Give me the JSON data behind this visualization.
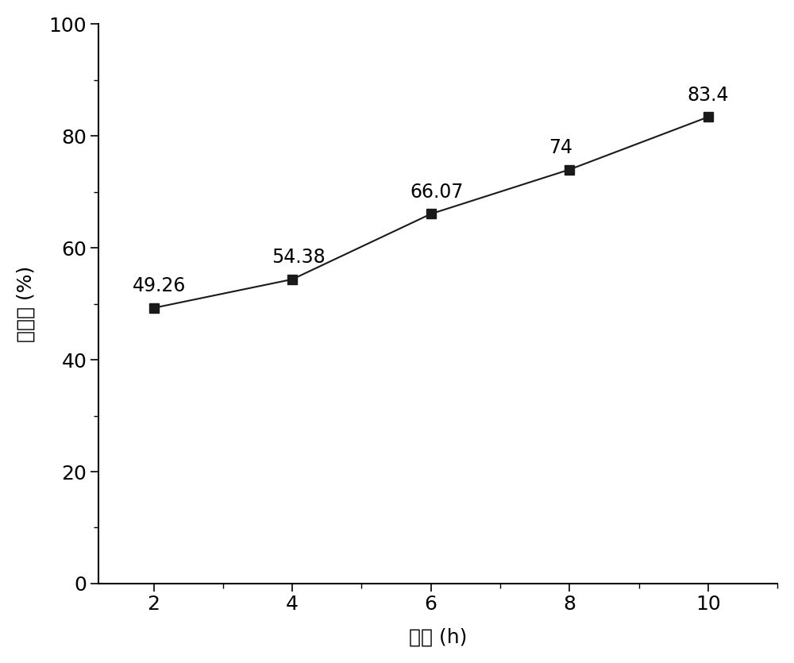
{
  "x": [
    2,
    4,
    6,
    8,
    10
  ],
  "y": [
    49.26,
    54.38,
    66.07,
    74.0,
    83.4
  ],
  "labels": [
    "49.26",
    "54.38",
    "66.07",
    "74",
    "83.4"
  ],
  "xlabel": "时间 (h)",
  "ylabel": "降解率 (%)",
  "xlim": [
    1.2,
    11
  ],
  "ylim": [
    0,
    100
  ],
  "xticks": [
    2,
    4,
    6,
    8,
    10
  ],
  "yticks": [
    0,
    20,
    40,
    60,
    80,
    100
  ],
  "line_color": "#1a1a1a",
  "marker_color": "#1a1a1a",
  "marker": "s",
  "marker_size": 8,
  "line_width": 1.5,
  "label_fontsize": 18,
  "tick_fontsize": 18,
  "annotation_fontsize": 17,
  "background_color": "#ffffff",
  "label_offset_x": [
    -0.3,
    -0.3,
    -0.3,
    -0.3,
    -0.3
  ],
  "label_offset_y": [
    2.2,
    2.2,
    2.2,
    2.2,
    2.2
  ]
}
